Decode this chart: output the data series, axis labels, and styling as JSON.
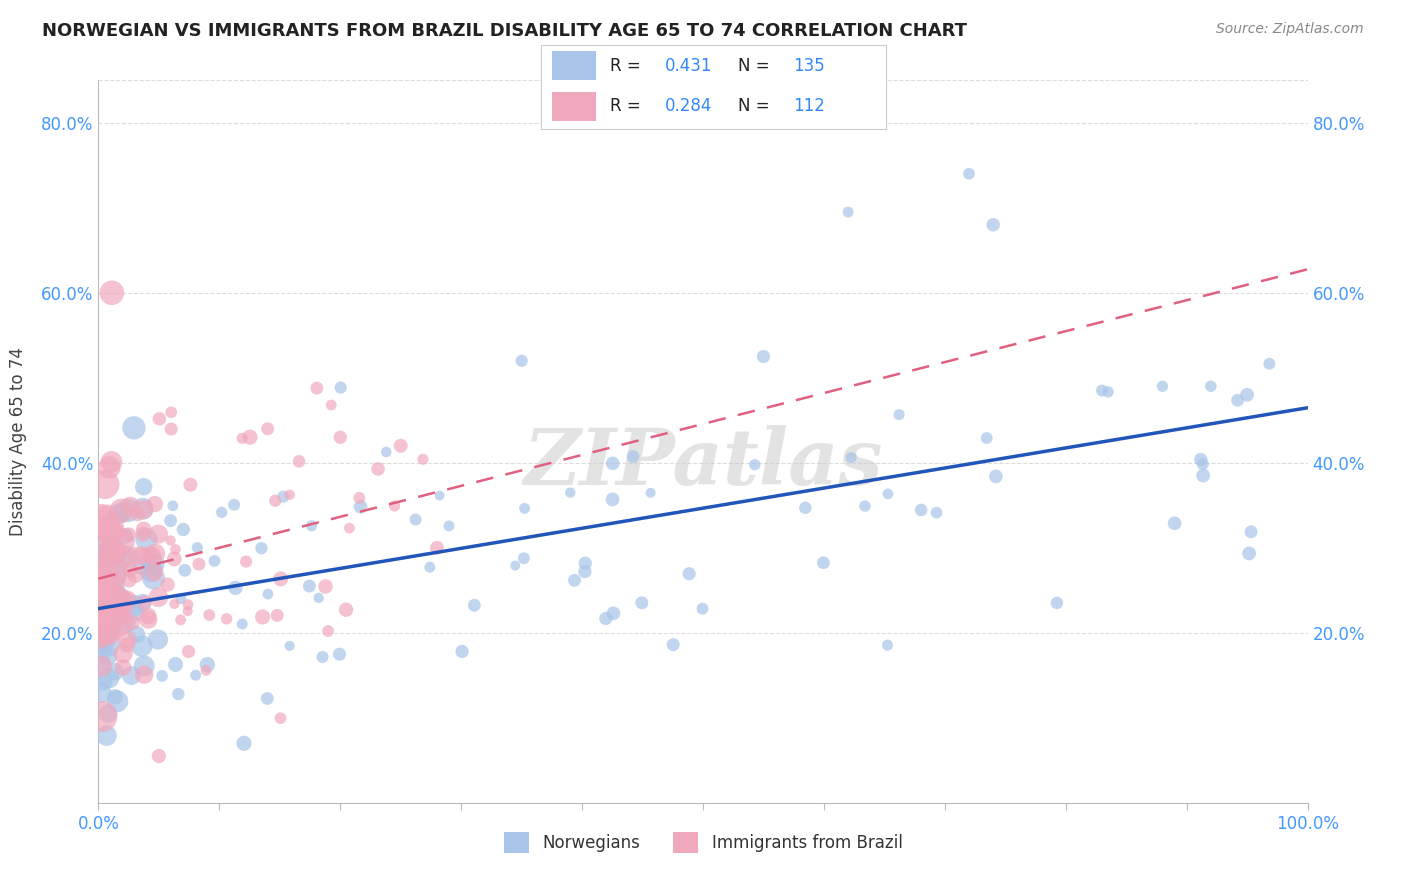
{
  "title": "NORWEGIAN VS IMMIGRANTS FROM BRAZIL DISABILITY AGE 65 TO 74 CORRELATION CHART",
  "source": "Source: ZipAtlas.com",
  "ylabel": "Disability Age 65 to 74",
  "blue_R": 0.431,
  "blue_N": 135,
  "pink_R": 0.284,
  "pink_N": 112,
  "blue_color": "#a8c4e8",
  "pink_color": "#f0a8bc",
  "blue_line_color": "#2255bb",
  "pink_line_color": "#e06080",
  "watermark": "ZIPatlas",
  "xlim": [
    0.0,
    1.0
  ],
  "ylim": [
    0.0,
    0.85
  ],
  "yticks": [
    0.2,
    0.4,
    0.6,
    0.8
  ],
  "yticklabels": [
    "20.0%",
    "40.0%",
    "60.0%",
    "80.0%"
  ],
  "legend_norwegian": "Norwegians",
  "legend_brazil": "Immigrants from Brazil",
  "blue_seed_exp": 10,
  "pink_seed_exp": 20
}
